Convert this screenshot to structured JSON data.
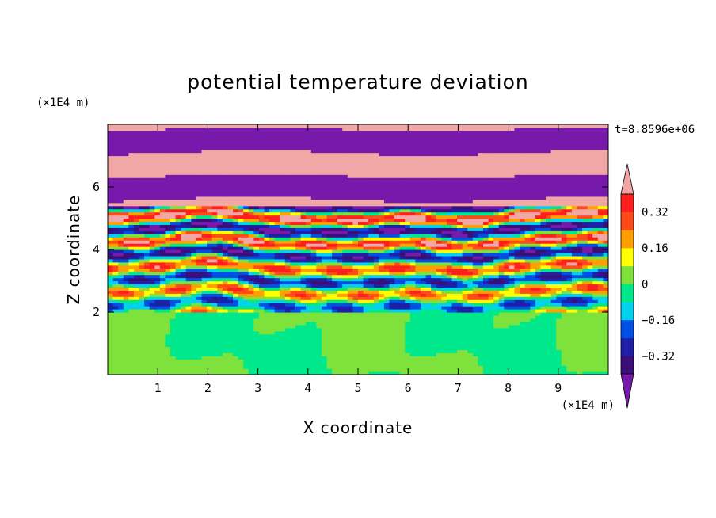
{
  "chart_data": {
    "type": "heatmap",
    "title": "potential temperature deviation",
    "xlabel": "X coordinate",
    "ylabel": "Z coordinate",
    "x_unit": "(×1E4 m)",
    "y_unit": "(×1E4 m)",
    "time_label": "t=8.8596e+06",
    "xlim": [
      0,
      10
    ],
    "ylim": [
      0,
      8
    ],
    "x_ticks": [
      1,
      2,
      3,
      4,
      5,
      6,
      7,
      8,
      9
    ],
    "y_ticks": [
      2,
      4,
      6
    ],
    "colorbar": {
      "tick_labels": [
        "0.32",
        "0.16",
        "0",
        "−0.16",
        "−0.32"
      ],
      "tick_values": [
        0.32,
        0.16,
        0,
        -0.16,
        -0.32
      ],
      "levels": [
        -0.4,
        -0.32,
        -0.24,
        -0.16,
        -0.08,
        0,
        0.08,
        0.16,
        0.24,
        0.32,
        0.4
      ],
      "colors": [
        "#3c0f78",
        "#1f1fa8",
        "#0050e6",
        "#00d2f0",
        "#00e88c",
        "#7fe23c",
        "#ffff00",
        "#ffa000",
        "#ff4a1a",
        "#ff1f1f"
      ],
      "under_color": "#7719ab",
      "over_color": "#f2a7a7"
    },
    "regions": [
      {
        "z_range": [
          0,
          2
        ],
        "description_values": [
          -0.08,
          0.08
        ],
        "dominant": 0.04
      },
      {
        "z_range": [
          2,
          5.5
        ],
        "dominant": "mixed"
      },
      {
        "z_range": [
          5.5,
          8
        ],
        "dominant": "alternating bands < -0.4 and > 0.4"
      }
    ]
  }
}
